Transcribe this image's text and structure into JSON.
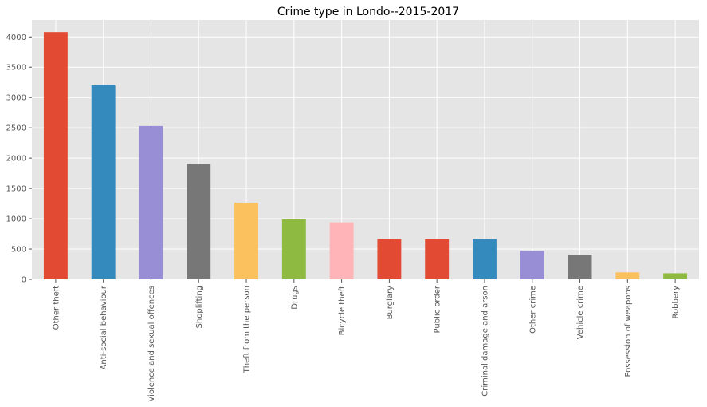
{
  "chart_data": {
    "type": "bar",
    "title": "Crime type in Londo--2015-2017",
    "xlabel": "",
    "ylabel": "",
    "categories": [
      "Other theft",
      "Anti-social behaviour",
      "Violence and sexual offences",
      "Shoplifting",
      "Theft from the person",
      "Drugs",
      "Bicycle theft",
      "Burglary",
      "Public order",
      "Criminal damage and arson",
      "Other crime",
      "Vehicle crime",
      "Possession of weapons",
      "Robbery"
    ],
    "values": [
      4080,
      3200,
      2530,
      1905,
      1265,
      990,
      940,
      665,
      665,
      665,
      470,
      405,
      115,
      100
    ],
    "ylim": [
      0,
      4280
    ],
    "yticks": [
      "0",
      "500",
      "1000",
      "1500",
      "2000",
      "2500",
      "3000",
      "3500",
      "4000"
    ],
    "grid": true,
    "colors": [
      "#E24A33",
      "#348ABD",
      "#988ED5",
      "#777777",
      "#FBC15E",
      "#8EBA42",
      "#FFB5B8",
      "#E24A33",
      "#E24A33",
      "#348ABD",
      "#988ED5",
      "#777777",
      "#FBC15E",
      "#8EBA42"
    ],
    "background": "#E5E5E5",
    "grid_color": "#FFFFFF"
  }
}
